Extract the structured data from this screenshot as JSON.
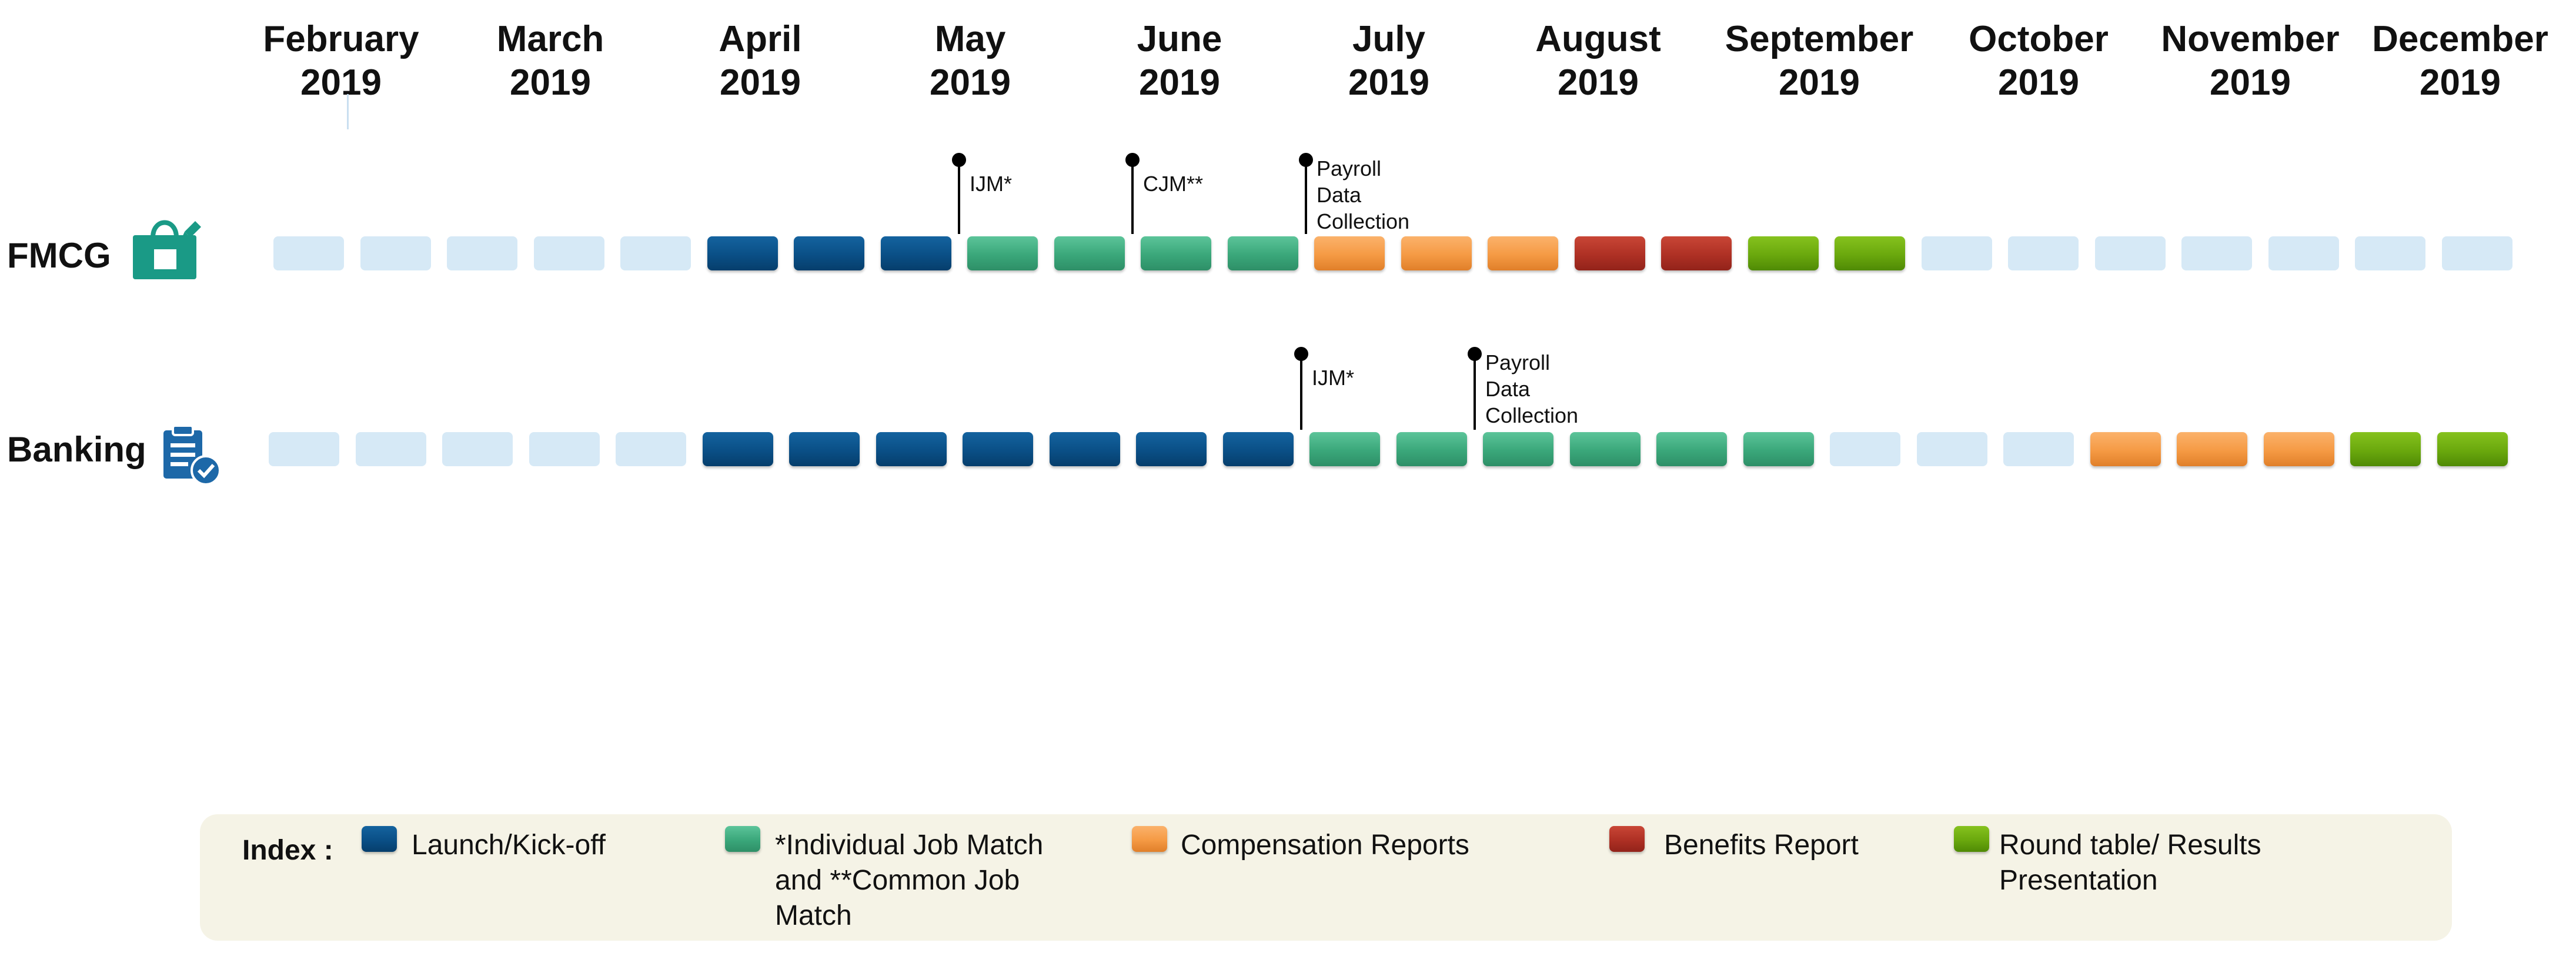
{
  "months": [
    {
      "name": "February",
      "year": "2019"
    },
    {
      "name": "March",
      "year": "2019"
    },
    {
      "name": "April",
      "year": "2019"
    },
    {
      "name": "May",
      "year": "2019"
    },
    {
      "name": "June",
      "year": "2019"
    },
    {
      "name": "July",
      "year": "2019"
    },
    {
      "name": "August",
      "year": "2019"
    },
    {
      "name": "September",
      "year": "2019"
    },
    {
      "name": "October",
      "year": "2019"
    },
    {
      "name": "November",
      "year": "2019"
    },
    {
      "name": "December",
      "year": "2019"
    }
  ],
  "rows": [
    {
      "label": "FMCG",
      "icon": "shopping-bag-icon",
      "blocks": [
        "none",
        "none",
        "none",
        "none",
        "none",
        "launch",
        "launch",
        "launch",
        "match",
        "match",
        "match",
        "match",
        "comp",
        "comp",
        "comp",
        "benefits",
        "benefits",
        "round",
        "round",
        "none",
        "none",
        "none",
        "none",
        "none",
        "none",
        "none"
      ],
      "milestones": [
        {
          "after_block": 8,
          "label": "IJM*"
        },
        {
          "after_block": 10,
          "label": "CJM**"
        },
        {
          "after_block": 12,
          "label": "Payroll\nData\nCollection"
        }
      ]
    },
    {
      "label": "Banking",
      "icon": "clipboard-check-icon",
      "blocks": [
        "none",
        "none",
        "none",
        "none",
        "none",
        "launch",
        "launch",
        "launch",
        "launch",
        "launch",
        "launch",
        "launch",
        "match",
        "match",
        "match",
        "match",
        "match",
        "match",
        "none",
        "none",
        "none",
        "comp",
        "comp",
        "comp",
        "round",
        "round"
      ],
      "milestones": [
        {
          "after_block": 12,
          "label": "IJM*"
        },
        {
          "after_block": 14,
          "label": "Payroll\nData\nCollection"
        }
      ]
    }
  ],
  "legend": {
    "title": "Index :",
    "items": [
      {
        "key": "launch",
        "label": "Launch/Kick-off"
      },
      {
        "key": "match",
        "label": "*Individual Job Match\nand **Common Job\nMatch"
      },
      {
        "key": "comp",
        "label": "Compensation Reports"
      },
      {
        "key": "benefits",
        "label": "Benefits Report"
      },
      {
        "key": "round",
        "label": "Round table/ Results\nPresentation"
      }
    ]
  },
  "colors": {
    "launch": "#0a4f86",
    "match": "#3aa77a",
    "comp": "#f59a44",
    "benefits": "#ae3024",
    "round": "#6aa80d",
    "none": "#d6e9f6",
    "icon": "#1a9a86",
    "legend_bg": "#f5f3e6"
  }
}
